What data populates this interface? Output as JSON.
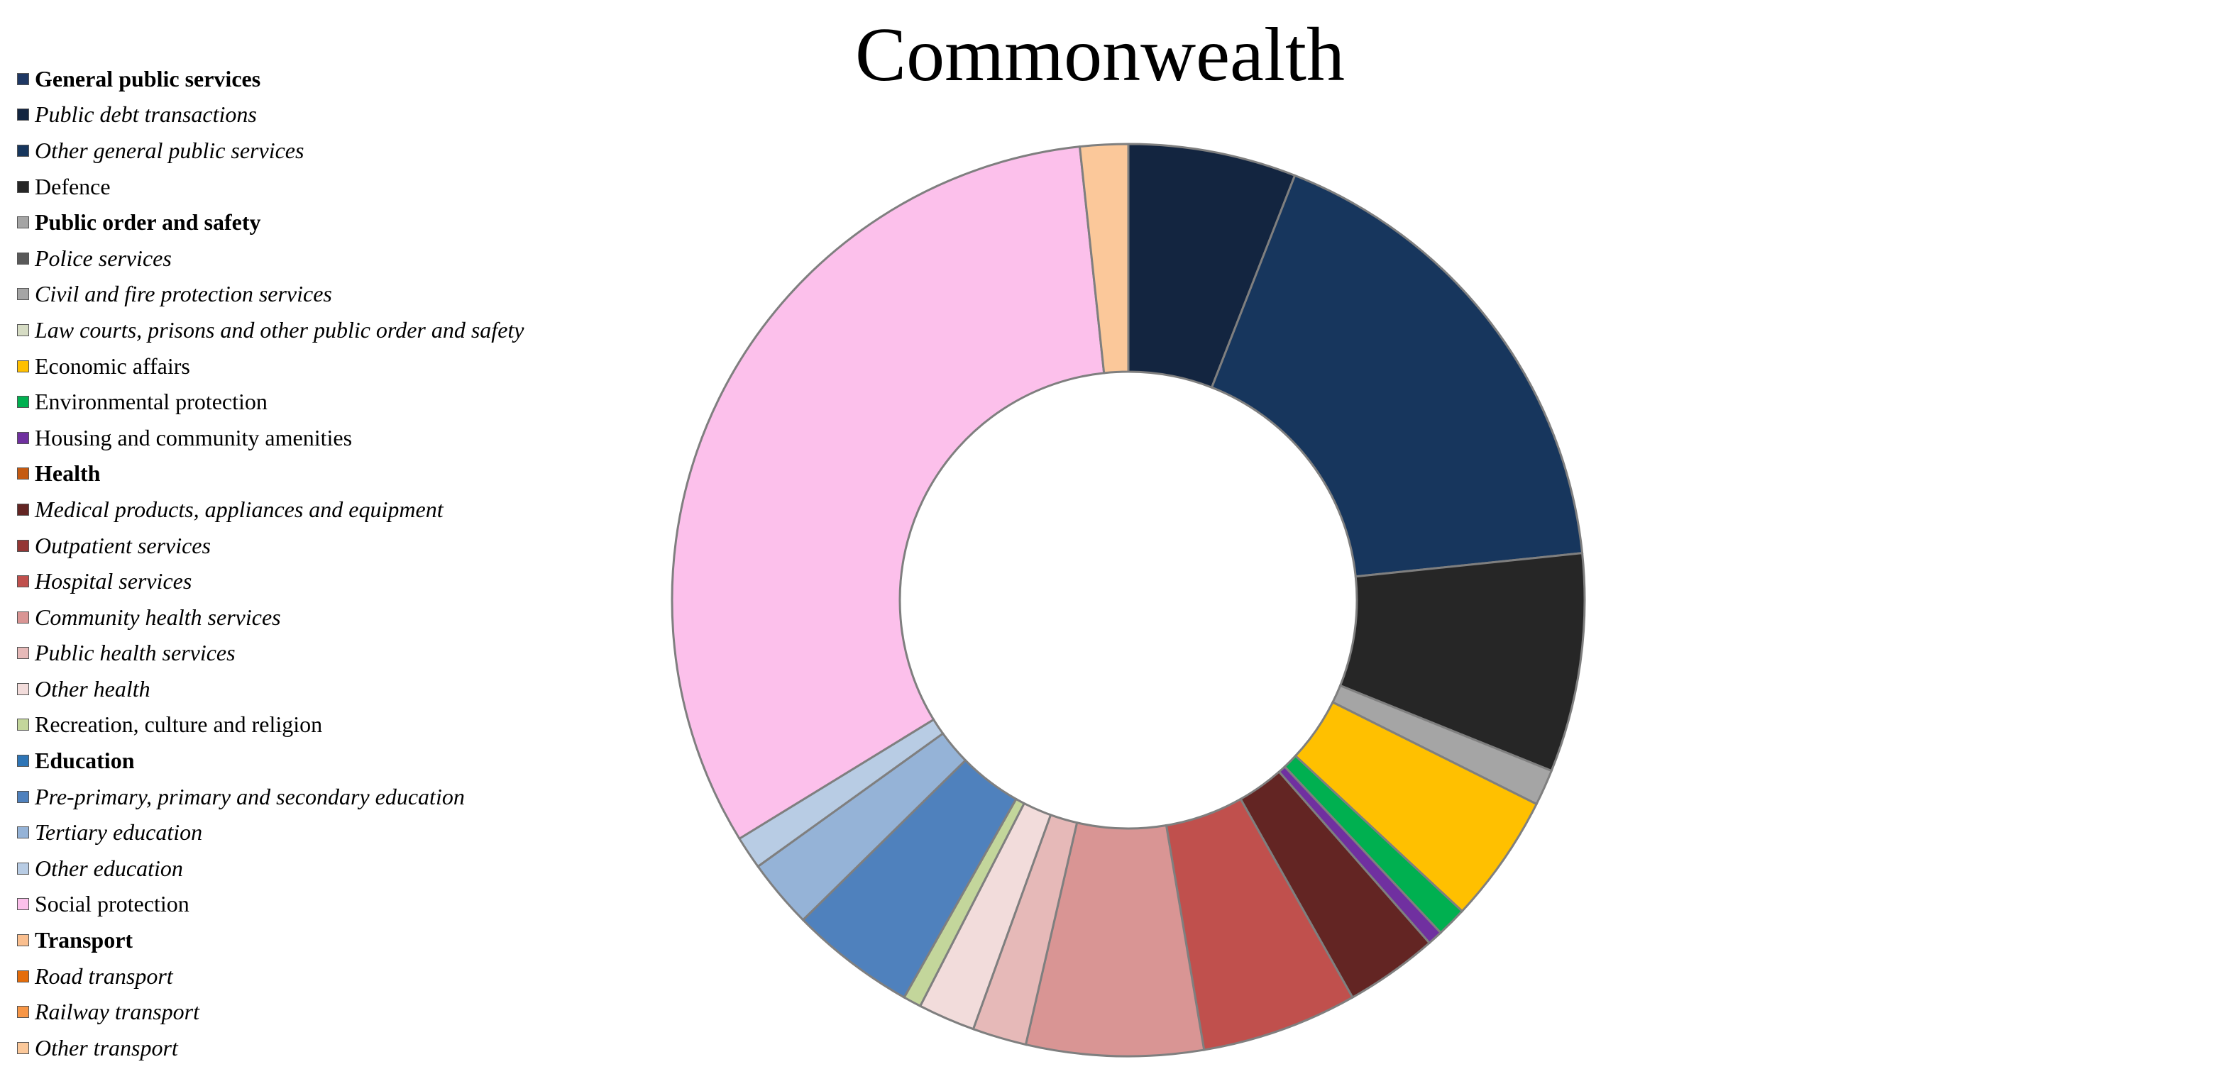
{
  "chart_data": {
    "type": "pie",
    "variant": "donut",
    "title": "Commonwealth",
    "legend_position": "left",
    "slices": [
      {
        "label": "General public services",
        "value": 0,
        "color": "#1f3864",
        "style": "bold"
      },
      {
        "label": "Public debt transactions",
        "value": 5.6,
        "color": "#132540",
        "style": "italic"
      },
      {
        "label": "Other general public services",
        "value": 16.4,
        "color": "#17365d",
        "style": "italic"
      },
      {
        "label": "Defence",
        "value": 7.3,
        "color": "#262626",
        "style": "normal"
      },
      {
        "label": "Public order and safety",
        "value": 0,
        "color": "#a5a5a5",
        "style": "bold"
      },
      {
        "label": "Police services",
        "value": 0,
        "color": "#595959",
        "style": "italic"
      },
      {
        "label": "Civil and fire protection services",
        "value": 1.2,
        "color": "#a5a5a5",
        "style": "italic"
      },
      {
        "label": "Law courts, prisons and other public order and safety",
        "value": 0,
        "color": "#d6dcc4",
        "style": "italic"
      },
      {
        "label": "Economic affairs",
        "value": 4.3,
        "color": "#ffc000",
        "style": "normal"
      },
      {
        "label": "Environmental protection",
        "value": 1.0,
        "color": "#00b050",
        "style": "normal"
      },
      {
        "label": "Housing and community amenities",
        "value": 0.5,
        "color": "#7030a0",
        "style": "normal"
      },
      {
        "label": "Health",
        "value": 0,
        "color": "#c55a11",
        "style": "bold"
      },
      {
        "label": "Medical products, appliances and equipment",
        "value": 3.1,
        "color": "#632523",
        "style": "italic"
      },
      {
        "label": "Outpatient services",
        "value": 0,
        "color": "#943634",
        "style": "italic"
      },
      {
        "label": "Hospital services",
        "value": 5.2,
        "color": "#c0504d",
        "style": "italic"
      },
      {
        "label": "Community health services",
        "value": 5.9,
        "color": "#d99594",
        "style": "italic"
      },
      {
        "label": "Public health services",
        "value": 1.8,
        "color": "#e6b9b8",
        "style": "italic"
      },
      {
        "label": "Other health",
        "value": 1.9,
        "color": "#f2dcdb",
        "style": "italic"
      },
      {
        "label": "Recreation, culture and religion",
        "value": 0.6,
        "color": "#c3d69b",
        "style": "normal"
      },
      {
        "label": "Education",
        "value": 0,
        "color": "#2e75b6",
        "style": "bold"
      },
      {
        "label": "Pre-primary, primary and secondary education",
        "value": 4.2,
        "color": "#4f81bd",
        "style": "italic"
      },
      {
        "label": "Tertiary education",
        "value": 2.3,
        "color": "#95b3d7",
        "style": "italic"
      },
      {
        "label": "Other education",
        "value": 1.1,
        "color": "#b8cce4",
        "style": "italic"
      },
      {
        "label": "Social protection",
        "value": 30.2,
        "color": "#fcc0eb",
        "style": "normal"
      },
      {
        "label": "Transport",
        "value": 0,
        "color": "#fabf8f",
        "style": "bold"
      },
      {
        "label": "Road transport",
        "value": 0,
        "color": "#e46c0a",
        "style": "italic"
      },
      {
        "label": "Railway transport",
        "value": 0,
        "color": "#f79646",
        "style": "italic"
      },
      {
        "label": "Other transport",
        "value": 1.6,
        "color": "#fbc89a",
        "style": "italic"
      }
    ]
  }
}
